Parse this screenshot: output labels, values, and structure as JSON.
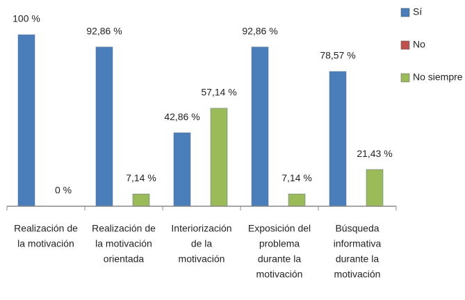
{
  "chart_data": {
    "type": "bar",
    "categories": [
      [
        "Realización de",
        "la motivación"
      ],
      [
        "Realización de",
        "la motivación",
        "orientada"
      ],
      [
        "Interiorización",
        "de la",
        "motivación"
      ],
      [
        "Exposición del",
        "problema",
        "durante la",
        "motivación"
      ],
      [
        "Búsqueda",
        "informativa",
        "durante la",
        "motivación"
      ]
    ],
    "series": [
      {
        "name": "Sí",
        "color": "#4a7ebb",
        "values": [
          100,
          92.86,
          42.86,
          92.86,
          78.57
        ],
        "value_labels": [
          "100 %",
          "92,86 %",
          "42,86 %",
          "92,86 %",
          "78,57 %"
        ]
      },
      {
        "name": "No",
        "color": "#c0504d",
        "values": [
          null,
          null,
          null,
          null,
          null
        ]
      },
      {
        "name": "No siempre",
        "color": "#9bbb59",
        "values": [
          0,
          7.14,
          57.14,
          7.14,
          21.43
        ],
        "value_labels": [
          "0 %",
          "7,14 %",
          "57,14 %",
          "7,14 %",
          "21,43 %"
        ]
      }
    ],
    "legend": "right"
  }
}
